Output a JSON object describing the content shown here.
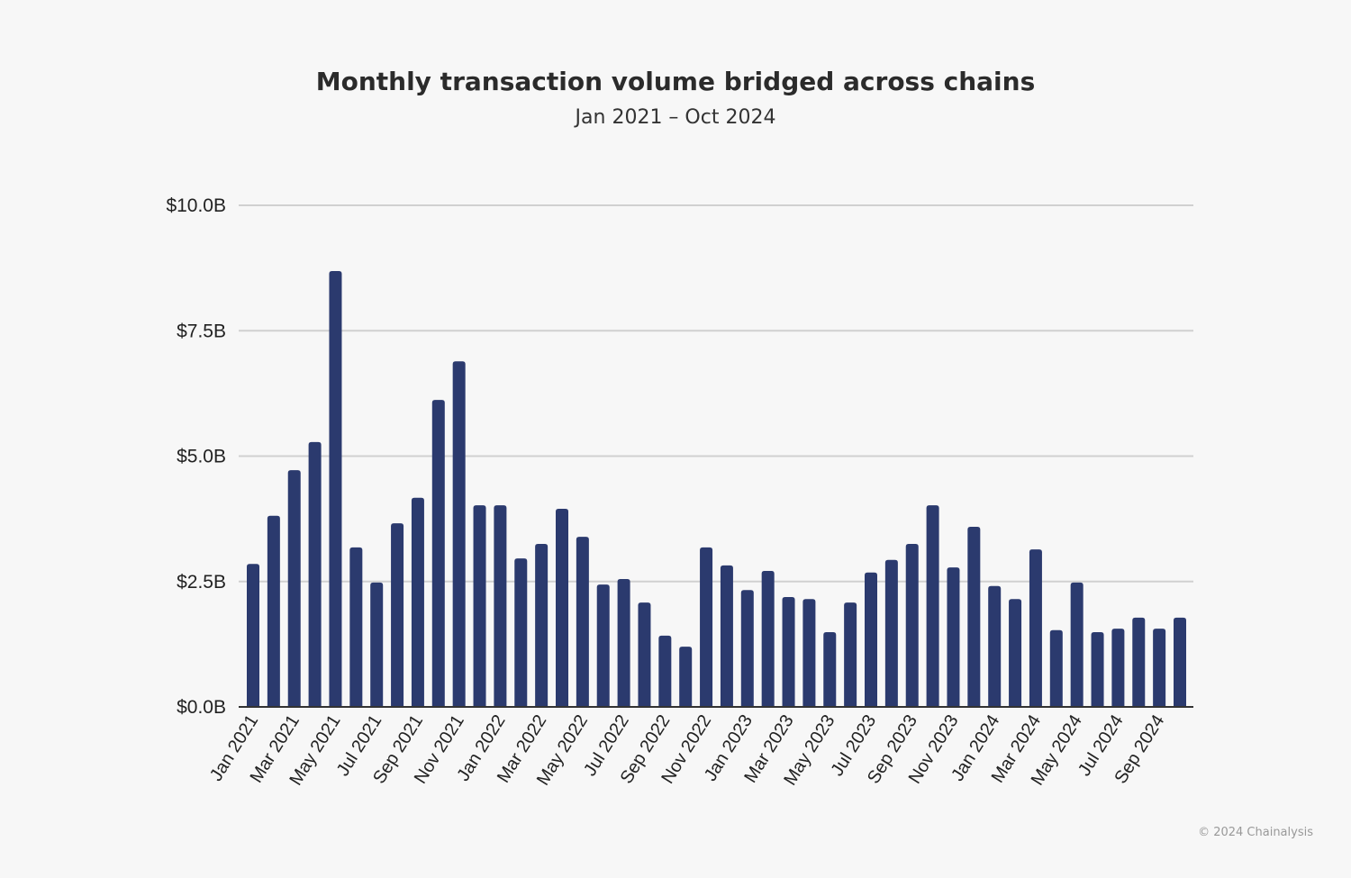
{
  "chart_data": {
    "type": "bar",
    "title": "Monthly transaction volume bridged across chains",
    "subtitle": "Jan 2021 – Oct 2024",
    "xlabel": "",
    "ylabel": "",
    "ylim": [
      0,
      10
    ],
    "y_ticks": [
      "$0.0B",
      "$2.5B",
      "$5.0B",
      "$7.5B",
      "$10.0B"
    ],
    "y_tick_values": [
      0,
      2.5,
      5,
      7.5,
      10
    ],
    "grid": true,
    "bar_color": "#2b3a6e",
    "categories": [
      "Jan 2021",
      "Feb 2021",
      "Mar 2021",
      "Apr 2021",
      "May 2021",
      "Jun 2021",
      "Jul 2021",
      "Aug 2021",
      "Sep 2021",
      "Oct 2021",
      "Nov 2021",
      "Dec 2021",
      "Jan 2022",
      "Feb 2022",
      "Mar 2022",
      "Apr 2022",
      "May 2022",
      "Jun 2022",
      "Jul 2022",
      "Aug 2022",
      "Sep 2022",
      "Oct 2022",
      "Nov 2022",
      "Dec 2022",
      "Jan 2023",
      "Feb 2023",
      "Mar 2023",
      "Apr 2023",
      "May 2023",
      "Jun 2023",
      "Jul 2023",
      "Aug 2023",
      "Sep 2023",
      "Oct 2023",
      "Nov 2023",
      "Dec 2023",
      "Jan 2024",
      "Feb 2024",
      "Mar 2024",
      "Apr 2024",
      "May 2024",
      "Jun 2024",
      "Jul 2024",
      "Aug 2024",
      "Sep 2024",
      "Oct 2024"
    ],
    "x_tick_labels": [
      "Jan 2021",
      "Mar 2021",
      "May 2021",
      "Jul 2021",
      "Sep 2021",
      "Nov 2021",
      "Jan 2022",
      "Mar 2022",
      "May 2022",
      "Jul 2022",
      "Sep 2022",
      "Nov 2022",
      "Jan 2023",
      "Mar 2023",
      "May 2023",
      "Jul 2023",
      "Sep 2023",
      "Nov 2023",
      "Jan 2024",
      "Mar 2024",
      "May 2024",
      "Jul 2024",
      "Sep 2024"
    ],
    "values": [
      2.85,
      3.81,
      4.72,
      5.28,
      8.69,
      3.18,
      2.48,
      3.66,
      4.17,
      6.12,
      6.89,
      4.02,
      4.02,
      2.96,
      3.25,
      3.95,
      3.39,
      2.44,
      2.55,
      2.08,
      1.42,
      1.2,
      3.18,
      2.82,
      2.33,
      2.71,
      2.19,
      2.15,
      1.49,
      2.08,
      2.68,
      2.93,
      3.25,
      4.02,
      2.78,
      3.59,
      2.41,
      2.15,
      3.14,
      1.53,
      2.48,
      1.49,
      1.56,
      1.78,
      1.56,
      1.78
    ],
    "unit": "$B"
  },
  "footer": "© 2024 Chainalysis"
}
